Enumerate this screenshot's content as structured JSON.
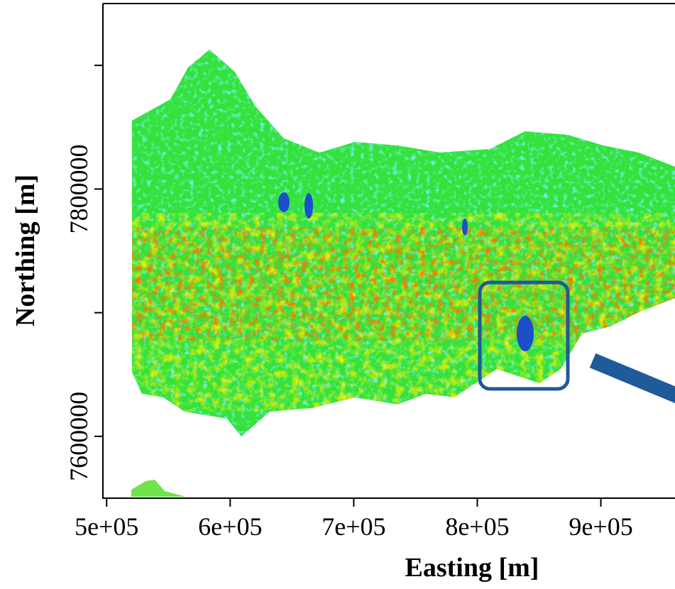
{
  "chart_data": {
    "type": "raster",
    "xlabel": "Easting [m]",
    "ylabel": "Northing [m]",
    "xlim": [
      497000,
      960000
    ],
    "ylim": [
      7550000,
      7950000
    ],
    "xticks": [
      {
        "value": 500000,
        "label": "5e+05"
      },
      {
        "value": 600000,
        "label": "6e+05"
      },
      {
        "value": 700000,
        "label": "7e+05"
      },
      {
        "value": 800000,
        "label": "8e+05"
      },
      {
        "value": 900000,
        "label": "9e+05"
      }
    ],
    "yticks": [
      7600000,
      {
        "value": 7700000,
        "label": null
      },
      7800000,
      {
        "value": 7900000,
        "label": null
      }
    ]
  }
}
